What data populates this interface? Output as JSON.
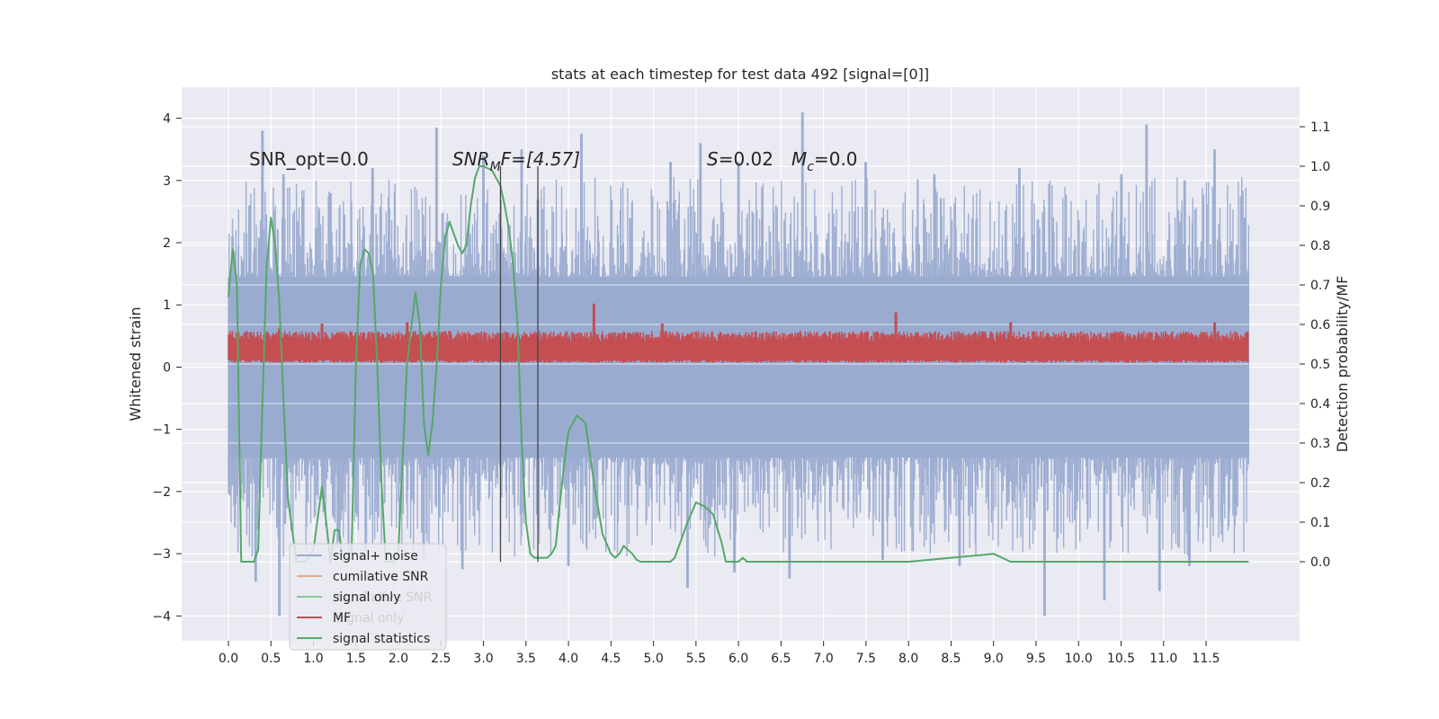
{
  "chart_data": {
    "type": "line",
    "title": "stats at each timestep for test data 492 [signal=[0]]",
    "xlabel": "",
    "ylabel": "Whitened strain",
    "ylabel_right": "Detection probability/MF",
    "xlim": [
      -0.55,
      12.6
    ],
    "ylim": [
      -4.4,
      4.5
    ],
    "ylim_right": [
      -0.2,
      1.2
    ],
    "x_ticks": [
      "0.0",
      "0.5",
      "1.0",
      "1.5",
      "2.0",
      "2.5",
      "3.0",
      "3.5",
      "4.0",
      "4.5",
      "5.0",
      "5.5",
      "6.0",
      "6.5",
      "7.0",
      "7.5",
      "8.0",
      "8.5",
      "9.0",
      "9.5",
      "10.0",
      "10.5",
      "11.0",
      "11.5"
    ],
    "y_ticks": [
      "4",
      "3",
      "2",
      "1",
      "0",
      "−1",
      "−2",
      "−3",
      "−4"
    ],
    "y_right_ticks": [
      "1.1",
      "1.0",
      "0.9",
      "0.8",
      "0.7",
      "0.6",
      "0.5",
      "0.4",
      "0.3",
      "0.2",
      "0.1",
      "0.0"
    ],
    "grid": true,
    "legend_position": "lower-left",
    "legend": [
      {
        "label": "signal+ noise",
        "color": "#9aabd0"
      },
      {
        "label": "cumilative SNR",
        "color": "#e0a98e"
      },
      {
        "label": "signal only",
        "color": "#8cc59a"
      },
      {
        "label": "MF",
        "color": "#c44e52"
      },
      {
        "label": "signal statistics",
        "color": "#55a868"
      }
    ],
    "legend_ghost_labels": [
      "cumilative SNR",
      "signal only"
    ],
    "annotations": {
      "snr_opt": "SNR_opt=0.0",
      "snr_mf_main": "SNR",
      "snr_mf_sub": "M",
      "snr_mf_rest": "F=[4.57]",
      "s_label": "S",
      "s_value": "=0.02",
      "mc_main": "M",
      "mc_sub": "c",
      "mc_value": "=0.0"
    },
    "vertical_lines_x": [
      3.2,
      3.64
    ],
    "series": [
      {
        "name": "signal+ noise",
        "color": "#9aabd0",
        "x_range": [
          0.0,
          12.0
        ],
        "band": [
          -1.45,
          1.45
        ],
        "upper_peaks": [
          [
            0.05,
            2.1
          ],
          [
            0.25,
            2.6
          ],
          [
            0.4,
            3.8
          ],
          [
            0.65,
            3.1
          ],
          [
            1.2,
            2.8
          ],
          [
            1.7,
            3.2
          ],
          [
            2.45,
            3.85
          ],
          [
            3.0,
            3.4
          ],
          [
            3.45,
            3.5
          ],
          [
            4.15,
            3.75
          ],
          [
            5.2,
            3.3
          ],
          [
            5.55,
            3.6
          ],
          [
            6.0,
            3.3
          ],
          [
            6.75,
            4.1
          ],
          [
            7.5,
            3.3
          ],
          [
            8.3,
            3.1
          ],
          [
            9.3,
            3.2
          ],
          [
            10.5,
            3.1
          ],
          [
            10.8,
            3.9
          ],
          [
            11.25,
            3.0
          ],
          [
            11.6,
            3.5
          ],
          [
            11.95,
            2.4
          ]
        ],
        "lower_peaks": [
          [
            0.05,
            -1.9
          ],
          [
            0.32,
            -3.45
          ],
          [
            0.6,
            -4.0
          ],
          [
            1.3,
            -2.8
          ],
          [
            2.3,
            -3.1
          ],
          [
            2.75,
            -3.25
          ],
          [
            4.0,
            -3.2
          ],
          [
            5.4,
            -3.55
          ],
          [
            5.95,
            -3.3
          ],
          [
            6.6,
            -3.4
          ],
          [
            7.7,
            -3.1
          ],
          [
            8.6,
            -3.2
          ],
          [
            9.6,
            -4.0
          ],
          [
            10.3,
            -3.75
          ],
          [
            10.95,
            -3.6
          ],
          [
            11.3,
            -3.2
          ],
          [
            11.85,
            -2.2
          ]
        ]
      },
      {
        "name": "MF",
        "color": "#c44e52",
        "x_range": [
          0.0,
          12.0
        ],
        "baseline": 0.07,
        "band_center": 0.32,
        "band_halfwidth": 0.2,
        "peaks": [
          [
            0.6,
            0.62
          ],
          [
            1.1,
            0.7
          ],
          [
            2.1,
            0.72
          ],
          [
            4.3,
            1.02
          ],
          [
            5.1,
            0.7
          ],
          [
            7.85,
            0.88
          ],
          [
            9.2,
            0.72
          ],
          [
            11.6,
            0.72
          ]
        ]
      },
      {
        "name": "signal statistics",
        "color": "#55a868",
        "axis": "right",
        "x": [
          0,
          0.05,
          0.1,
          0.15,
          0.2,
          0.25,
          0.3,
          0.35,
          0.4,
          0.45,
          0.5,
          0.55,
          0.6,
          0.65,
          0.7,
          0.8,
          0.9,
          1.0,
          1.1,
          1.15,
          1.2,
          1.25,
          1.3,
          1.35,
          1.4,
          1.45,
          1.5,
          1.55,
          1.6,
          1.65,
          1.7,
          1.75,
          1.8,
          1.85,
          1.9,
          1.95,
          2.0,
          2.1,
          2.2,
          2.25,
          2.3,
          2.35,
          2.4,
          2.45,
          2.5,
          2.55,
          2.6,
          2.65,
          2.7,
          2.75,
          2.8,
          2.85,
          2.9,
          2.95,
          3.0,
          3.1,
          3.15,
          3.2,
          3.25,
          3.3,
          3.35,
          3.4,
          3.45,
          3.5,
          3.55,
          3.6,
          3.65,
          3.7,
          3.75,
          3.8,
          3.85,
          3.9,
          3.95,
          4.0,
          4.1,
          4.2,
          4.3,
          4.4,
          4.5,
          4.55,
          4.6,
          4.65,
          4.7,
          4.75,
          4.8,
          4.85,
          4.9,
          5.0,
          5.05,
          5.1,
          5.15,
          5.2,
          5.25,
          5.3,
          5.4,
          5.5,
          5.6,
          5.7,
          5.8,
          5.85,
          5.9,
          5.95,
          6.0,
          6.05,
          6.1,
          6.15,
          6.2,
          6.3,
          6.5,
          6.6,
          6.8,
          7.0,
          7.5,
          8.0,
          8.5,
          9.0,
          9.2,
          9.3,
          9.35,
          9.4,
          9.5,
          9.6,
          9.8,
          10.0,
          10.2,
          10.5,
          11.0,
          11.5,
          12.0
        ],
        "y": [
          0.67,
          0.79,
          0.7,
          0.0,
          0.0,
          0.0,
          0.0,
          0.03,
          0.4,
          0.75,
          0.87,
          0.8,
          0.65,
          0.4,
          0.16,
          0.0,
          0.0,
          0.03,
          0.19,
          0.1,
          0.0,
          0.08,
          0.08,
          0.0,
          0.0,
          0.03,
          0.5,
          0.75,
          0.79,
          0.78,
          0.73,
          0.5,
          0.2,
          0.0,
          0.0,
          0.0,
          0.03,
          0.5,
          0.68,
          0.6,
          0.35,
          0.27,
          0.35,
          0.5,
          0.7,
          0.82,
          0.86,
          0.83,
          0.8,
          0.78,
          0.8,
          0.9,
          0.97,
          1.0,
          1.0,
          0.99,
          0.97,
          0.95,
          0.9,
          0.84,
          0.75,
          0.6,
          0.3,
          0.1,
          0.02,
          0.01,
          0.01,
          0.01,
          0.01,
          0.02,
          0.04,
          0.15,
          0.25,
          0.33,
          0.37,
          0.35,
          0.2,
          0.07,
          0.02,
          0.01,
          0.02,
          0.04,
          0.03,
          0.02,
          0.005,
          0.0,
          0.0,
          0.0,
          0.0,
          0.0,
          0.0,
          0.0,
          0.01,
          0.04,
          0.1,
          0.15,
          0.14,
          0.12,
          0.05,
          0.0,
          0.0,
          0.0,
          0.0,
          0.01,
          0.0,
          0.0,
          0.0,
          0.0,
          0.0,
          0.0,
          0.0,
          0.0,
          0.0,
          0.0,
          0.01,
          0.02,
          0.0,
          0.0,
          0.0,
          0.0,
          0.0,
          0.0,
          0.0,
          0.0,
          0.0,
          0.0,
          0.0,
          0.0,
          0.0
        ]
      }
    ]
  },
  "colors": {
    "axes_bg": "#eaeaf2",
    "grid": "#ffffff",
    "vline": "#444444",
    "legend_bg": "#eaeaf2",
    "legend_border": "#cccccc"
  }
}
